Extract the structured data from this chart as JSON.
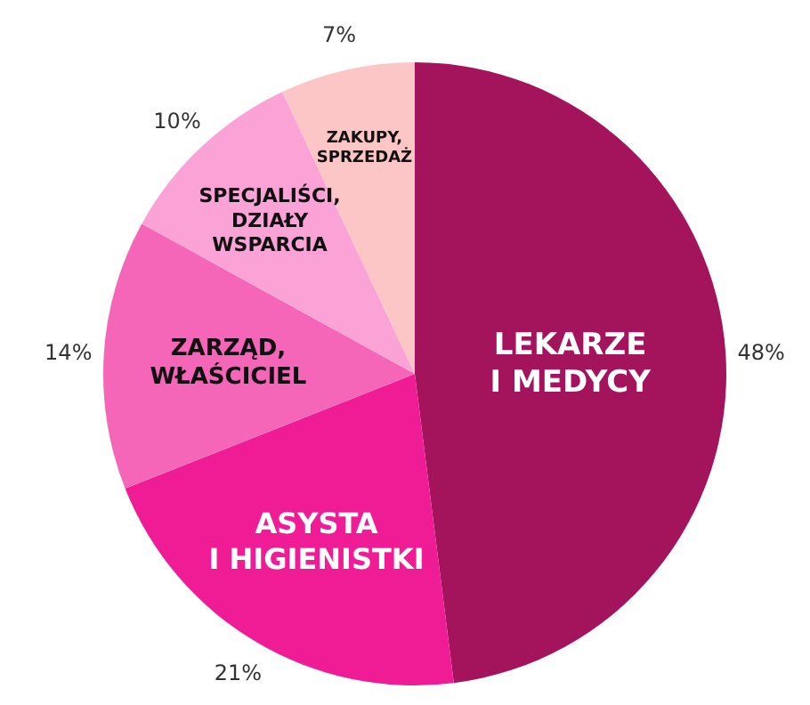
{
  "chart_data": {
    "type": "pie",
    "categories": [
      "LEKARZE I MEDYCY",
      "ASYSTA I HIGIENISTKI",
      "ZARZĄD, WŁAŚCICIEL",
      "SPECJALIŚCI, DZIAŁY WSPARCIA",
      "ZAKUPY, SPRZEDAŻ"
    ],
    "values": [
      48,
      21,
      14,
      10,
      7
    ],
    "colors": [
      "#a3145c",
      "#f01c96",
      "#f566b8",
      "#fba3d6",
      "#fdc6c6"
    ],
    "value_labels": [
      "48%",
      "21%",
      "14%",
      "10%",
      "7%"
    ],
    "legend": false
  }
}
